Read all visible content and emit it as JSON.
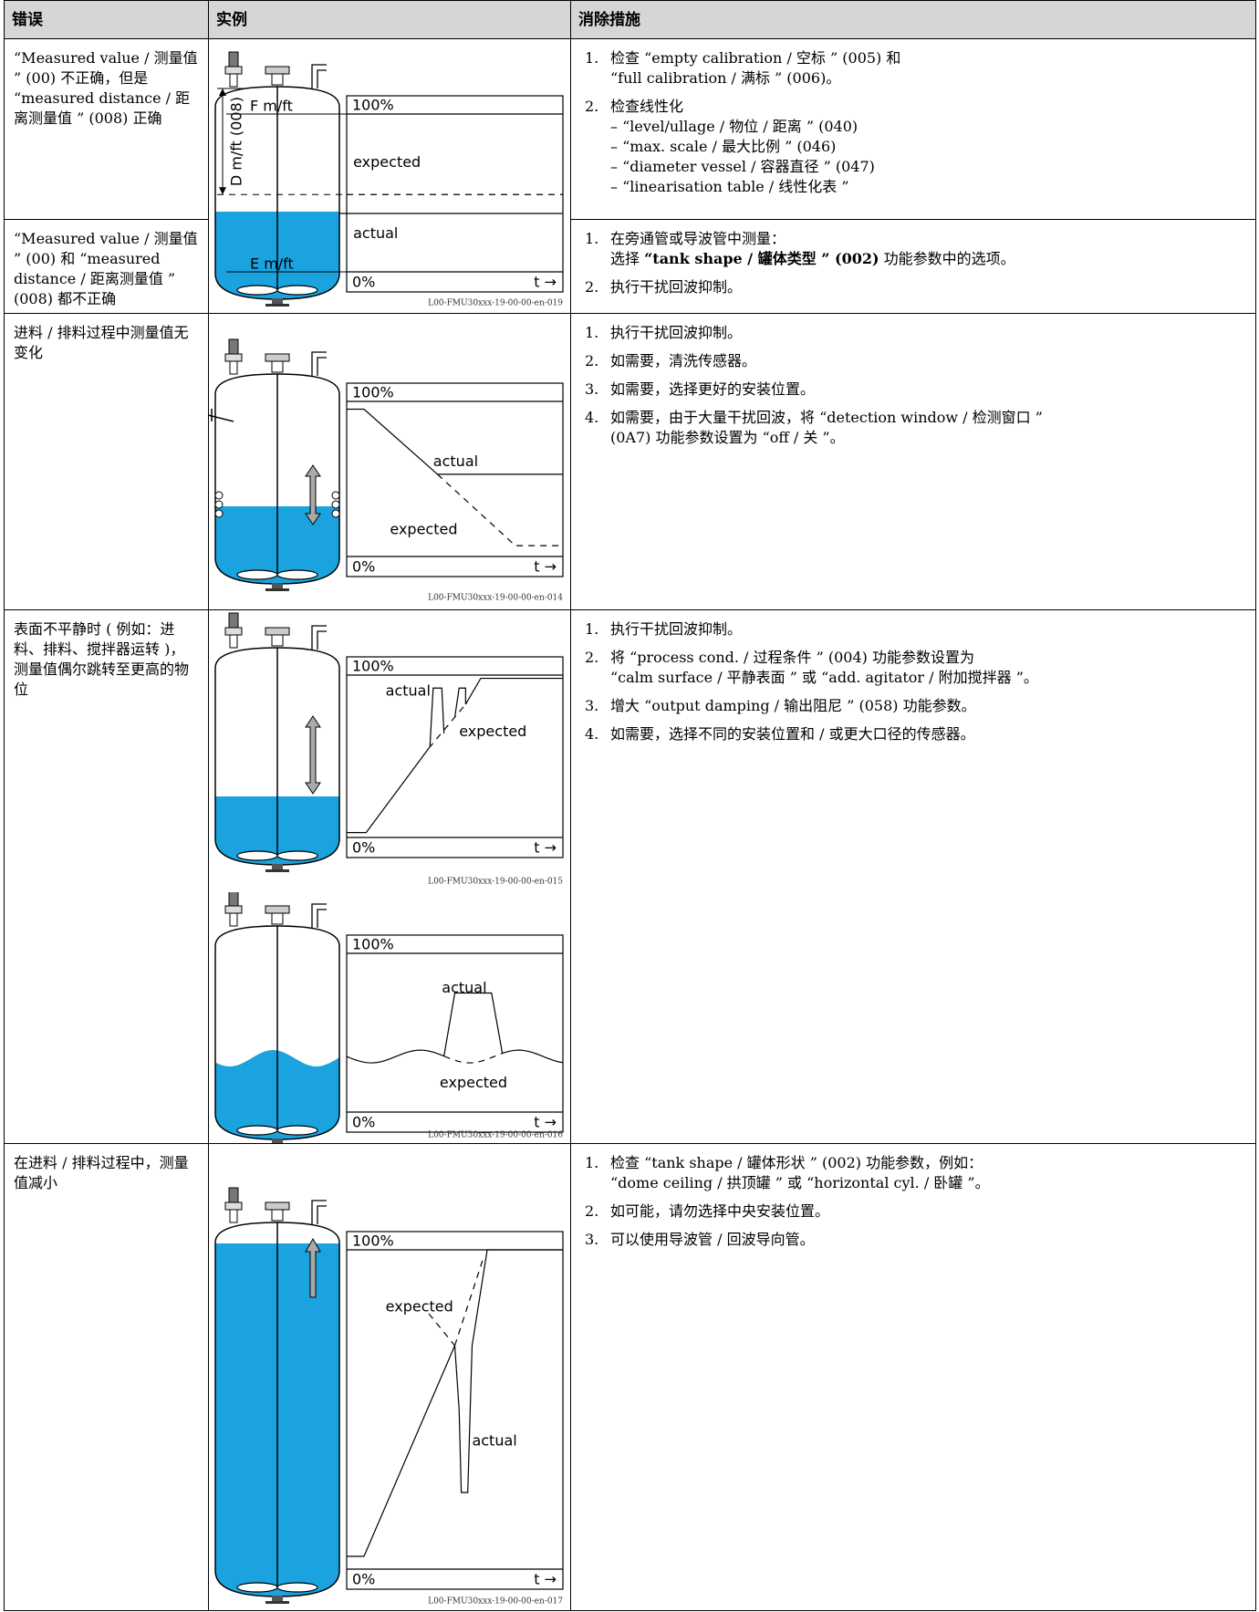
{
  "table": {
    "headers": [
      "错误",
      "实例",
      "消除措施"
    ],
    "rows": [
      {
        "error": "“Measured value / 测量值 ” (00) 不正确，但是 “measured distance / 距离测量值 ” (008) 正确",
        "fixes": [
          {
            "num": "1.",
            "lines": [
              "检查 “empty calibration / 空标 ” (005) 和",
              "“full calibration / 满标 ” (006)。"
            ]
          },
          {
            "num": "2.",
            "lines": [
              "检查线性化",
              "– “level/ullage / 物位 / 距离 ” (040)",
              "– “max. scale / 最大比例 ” (046)",
              "– “diameter vessel / 容器直径 ” (047)",
              "– “linearisation table / 线性化表 ”"
            ]
          }
        ]
      },
      {
        "error": "“Measured value / 测量值 ” (00) 和 “measured distance / 距离测量值 ” (008) 都不正确",
        "fixes": [
          {
            "num": "1.",
            "lines": [
              "在旁通管或导波管中测量：",
              {
                "before": "选择 ",
                "bold": "“tank shape / 罐体类型 ” (002)",
                "after": " 功能参数中的选项。"
              }
            ]
          },
          {
            "num": "2.",
            "lines": [
              "执行干扰回波抑制。"
            ]
          }
        ]
      },
      {
        "error": "进料 / 排料过程中测量值无变化",
        "fixes": [
          {
            "num": "1.",
            "lines": [
              "执行干扰回波抑制。"
            ]
          },
          {
            "num": "2.",
            "lines": [
              "如需要，清洗传感器。"
            ]
          },
          {
            "num": "3.",
            "lines": [
              "如需要，选择更好的安装位置。"
            ]
          },
          {
            "num": "4.",
            "lines": [
              "如需要，由于大量干扰回波，将 “detection window / 检测窗口 ”",
              "(0A7) 功能参数设置为 “off / 关 ”。"
            ]
          }
        ]
      },
      {
        "error": "表面不平静时 ( 例如：进料、排料、搅拌器运转 )，测量值偶尔跳转至更高的物位",
        "fixes": [
          {
            "num": "1.",
            "lines": [
              "执行干扰回波抑制。"
            ]
          },
          {
            "num": "2.",
            "lines": [
              "将 “process cond. / 过程条件 ” (004) 功能参数设置为",
              "“calm surface / 平静表面 ” 或 “add. agitator / 附加搅拌器 ”。"
            ]
          },
          {
            "num": "3.",
            "lines": [
              "增大 “output damping / 输出阻尼 ” (058) 功能参数。"
            ]
          },
          {
            "num": "4.",
            "lines": [
              "如需要，选择不同的安装位置和 / 或更大口径的传感器。"
            ]
          }
        ]
      },
      {
        "error": "在进料 / 排料过程中，测量值减小",
        "fixes": [
          {
            "num": "1.",
            "lines": [
              "检查 “tank shape / 罐体形状 ” (002) 功能参数，例如：",
              "“dome ceiling / 拱顶罐 ” 或 “horizontal cyl. / 卧罐 ”。"
            ]
          },
          {
            "num": "2.",
            "lines": [
              "如可能，请勿选择中央安装位置。"
            ]
          },
          {
            "num": "3.",
            "lines": [
              "可以使用导波管 / 回波导向管。"
            ]
          }
        ]
      }
    ]
  },
  "figures": [
    {
      "id": "L00-FMU30xxx-19-00-00-en-019",
      "full": "100%",
      "empty": "0%",
      "time": "t →",
      "expected": "expected",
      "actual": "actual",
      "f": "F m/ft",
      "d": "D m/ft (008)",
      "e": "E m/ft"
    },
    {
      "id": "L00-FMU30xxx-19-00-00-en-014",
      "full": "100%",
      "empty": "0%",
      "time": "t →",
      "expected": "expected",
      "actual": "actual"
    },
    {
      "id": "L00-FMU30xxx-19-00-00-en-015",
      "full": "100%",
      "empty": "0%",
      "time": "t →",
      "expected": "expected",
      "actual": "actual"
    },
    {
      "id": "L00-FMU30xxx-19-00-00-en-016",
      "full": "100%",
      "empty": "0%",
      "time": "t →",
      "expected": "expected",
      "actual": "actual"
    },
    {
      "id": "L00-FMU30xxx-19-00-00-en-017",
      "full": "100%",
      "empty": "0%",
      "time": "t →",
      "expected": "expected",
      "actual": "actual"
    }
  ]
}
